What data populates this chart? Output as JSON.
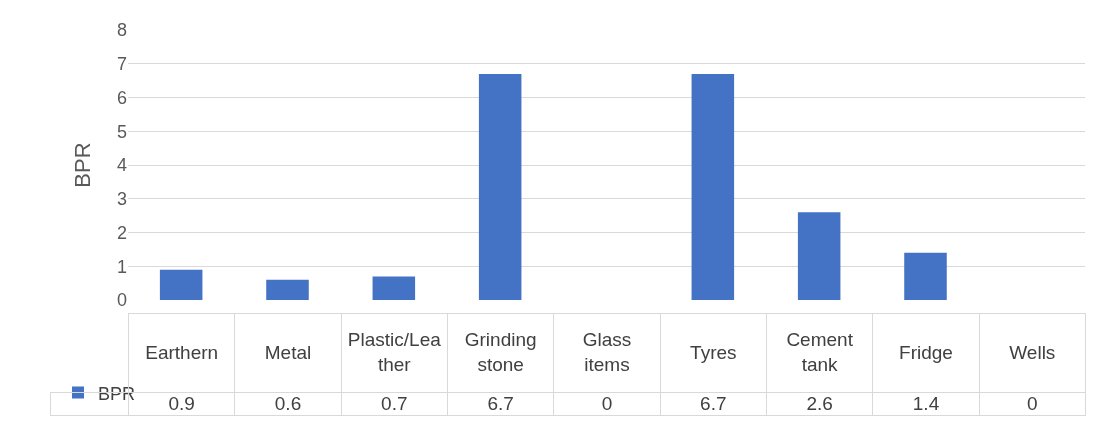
{
  "chart_data": {
    "type": "bar",
    "ylabel": "BPR",
    "categories": [
      "Earthern",
      "Metal",
      "Plastic/Leather",
      "Grinding stone",
      "Glass items",
      "Tyres",
      "Cement tank",
      "Fridge",
      "Wells"
    ],
    "series": [
      {
        "name": "BPR",
        "color": "#4472c4",
        "values": [
          0.9,
          0.6,
          0.7,
          6.7,
          0,
          6.7,
          2.6,
          1.4,
          0
        ]
      }
    ],
    "ylim": [
      0,
      8
    ],
    "yticks": [
      0,
      1,
      2,
      3,
      4,
      5,
      6,
      7,
      8
    ],
    "grid": "y",
    "legend": "bottom left",
    "data_labels": true
  }
}
